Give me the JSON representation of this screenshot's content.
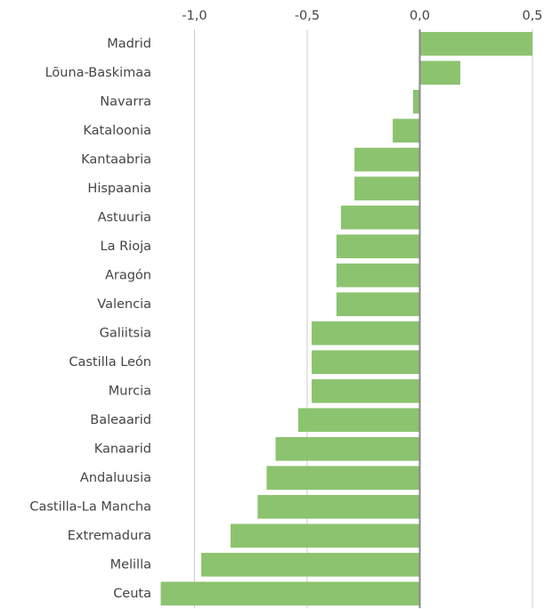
{
  "chart_data": {
    "type": "barh",
    "categories": [
      "Madrid",
      "Lõuna-Baskimaa",
      "Navarra",
      "Kataloonia",
      "Kantaabria",
      "Hispaania",
      "Astuuria",
      "La Rioja",
      "Aragón",
      "Valencia",
      "Galiitsia",
      "Castilla León",
      "Murcia",
      "Baleaarid",
      "Kanaarid",
      "Andaluusia",
      "Castilla-La Mancha",
      "Extremadura",
      "Melilla",
      "Ceuta"
    ],
    "values": [
      0.5,
      0.18,
      -0.03,
      -0.12,
      -0.29,
      -0.29,
      -0.35,
      -0.37,
      -0.37,
      -0.37,
      -0.48,
      -0.48,
      -0.48,
      -0.54,
      -0.64,
      -0.68,
      -0.72,
      -0.84,
      -0.97,
      -1.15
    ],
    "color": "#8cc36f",
    "xlim": [
      -1.16,
      0.5
    ],
    "xticks": [
      {
        "value": -1,
        "label": "-1,0"
      },
      {
        "value": -0.5,
        "label": "-0,5"
      },
      {
        "value": 0,
        "label": "0,0"
      },
      {
        "value": 0.5,
        "label": "0,5"
      }
    ],
    "grid": true
  }
}
